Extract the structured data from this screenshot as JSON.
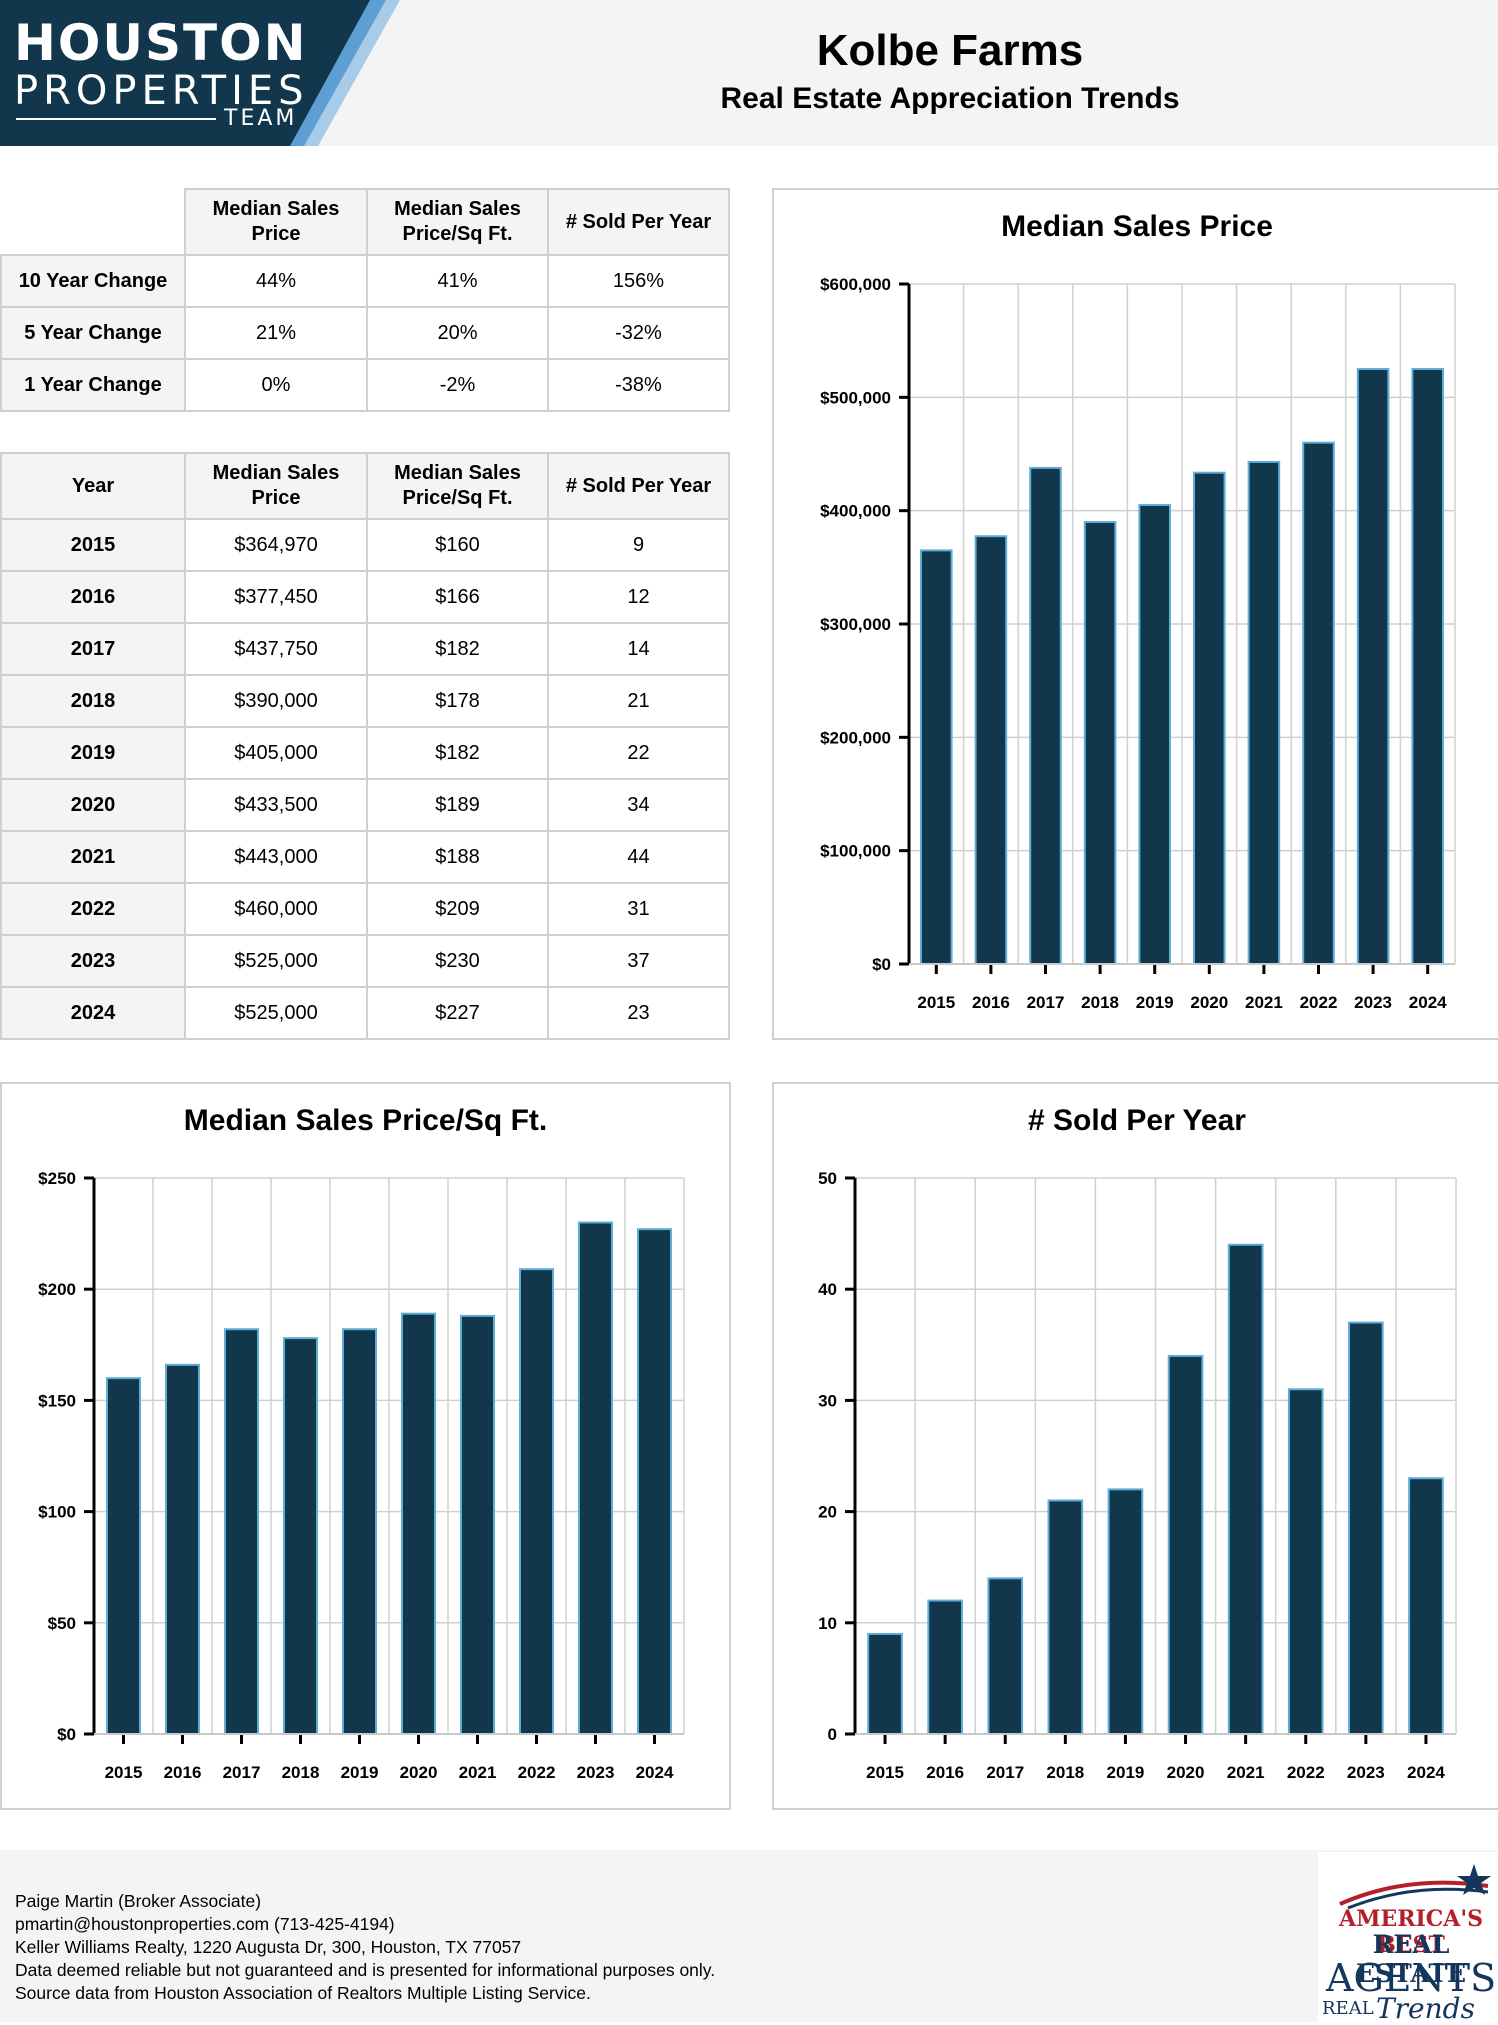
{
  "header": {
    "logo": {
      "line1": "HOUSTON",
      "line2": "PROPERTIES",
      "line3": "TEAM"
    },
    "title": "Kolbe Farms",
    "subtitle": "Real Estate Appreciation Trends"
  },
  "columns": [
    "Median Sales Price",
    "Median Sales Price/Sq Ft.",
    "# Sold Per Year"
  ],
  "year_label": "Year",
  "changes": [
    {
      "label": "10 Year Change",
      "price": "44%",
      "sqft": "41%",
      "sold": "156%"
    },
    {
      "label": "5 Year Change",
      "price": "21%",
      "sqft": "20%",
      "sold": "-32%"
    },
    {
      "label": "1 Year Change",
      "price": "0%",
      "sqft": "-2%",
      "sold": "-38%"
    }
  ],
  "history": [
    {
      "year": "2015",
      "price": "$364,970",
      "sqft": "$160",
      "sold": "9"
    },
    {
      "year": "2016",
      "price": "$377,450",
      "sqft": "$166",
      "sold": "12"
    },
    {
      "year": "2017",
      "price": "$437,750",
      "sqft": "$182",
      "sold": "14"
    },
    {
      "year": "2018",
      "price": "$390,000",
      "sqft": "$178",
      "sold": "21"
    },
    {
      "year": "2019",
      "price": "$405,000",
      "sqft": "$182",
      "sold": "22"
    },
    {
      "year": "2020",
      "price": "$433,500",
      "sqft": "$189",
      "sold": "34"
    },
    {
      "year": "2021",
      "price": "$443,000",
      "sqft": "$188",
      "sold": "44"
    },
    {
      "year": "2022",
      "price": "$460,000",
      "sqft": "$209",
      "sold": "31"
    },
    {
      "year": "2023",
      "price": "$525,000",
      "sqft": "$230",
      "sold": "37"
    },
    {
      "year": "2024",
      "price": "$525,000",
      "sqft": "$227",
      "sold": "23"
    }
  ],
  "chart_data": [
    {
      "type": "bar",
      "title": "Median Sales Price",
      "categories": [
        "2015",
        "2016",
        "2017",
        "2018",
        "2019",
        "2020",
        "2021",
        "2022",
        "2023",
        "2024"
      ],
      "values": [
        364970,
        377450,
        437750,
        390000,
        405000,
        433500,
        443000,
        460000,
        525000,
        525000
      ],
      "ylim": [
        0,
        600000
      ],
      "yticks": [
        0,
        100000,
        200000,
        300000,
        400000,
        500000,
        600000
      ],
      "ytick_labels": [
        "$0",
        "$100,000",
        "$200,000",
        "$300,000",
        "$400,000",
        "$500,000",
        "$600,000"
      ],
      "grid": true,
      "bar_color": "#12364b",
      "bar_edge": "#5eaed8"
    },
    {
      "type": "bar",
      "title": "Median Sales Price/Sq Ft.",
      "categories": [
        "2015",
        "2016",
        "2017",
        "2018",
        "2019",
        "2020",
        "2021",
        "2022",
        "2023",
        "2024"
      ],
      "values": [
        160,
        166,
        182,
        178,
        182,
        189,
        188,
        209,
        230,
        227
      ],
      "ylim": [
        0,
        250
      ],
      "yticks": [
        0,
        50,
        100,
        150,
        200,
        250
      ],
      "ytick_labels": [
        "$0",
        "$50",
        "$100",
        "$150",
        "$200",
        "$250"
      ],
      "grid": true,
      "bar_color": "#12364b",
      "bar_edge": "#5eaed8"
    },
    {
      "type": "bar",
      "title": "# Sold Per Year",
      "categories": [
        "2015",
        "2016",
        "2017",
        "2018",
        "2019",
        "2020",
        "2021",
        "2022",
        "2023",
        "2024"
      ],
      "values": [
        9,
        12,
        14,
        21,
        22,
        34,
        44,
        31,
        37,
        23
      ],
      "ylim": [
        0,
        50
      ],
      "yticks": [
        0,
        10,
        20,
        30,
        40,
        50
      ],
      "ytick_labels": [
        "0",
        "10",
        "20",
        "30",
        "40",
        "50"
      ],
      "grid": true,
      "bar_color": "#12364b",
      "bar_edge": "#5eaed8"
    }
  ],
  "footer": {
    "lines": [
      "Paige Martin (Broker Associate)",
      "pmartin@houstonproperties.com (713-425-4194)",
      "Keller Williams Realty, 1220 Augusta Dr, 300, Houston, TX 77057",
      "Data deemed reliable but not guaranteed and is presented for informational purposes only.",
      "Source data from Houston Association of Realtors Multiple Listing Service."
    ]
  },
  "badge": {
    "line1": "AMERICA'S BEST",
    "line2": "REAL ESTATE",
    "line3": "AGENTS",
    "line4": "REAL",
    "line5": "Trends"
  },
  "colors": {
    "logo_bg": "#12364b",
    "accent_light": "#a8cbe8",
    "accent_mid": "#5e9fd3",
    "header_bg": "#f4f4f4"
  }
}
